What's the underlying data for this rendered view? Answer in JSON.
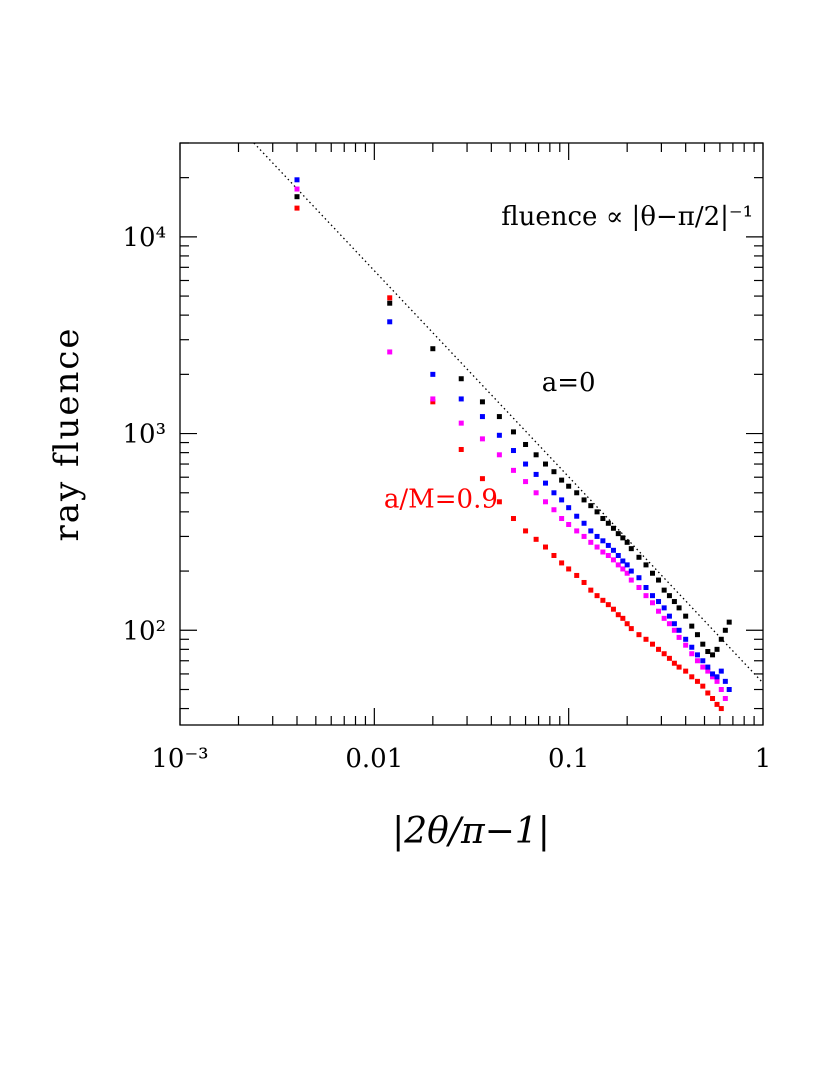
{
  "chart_data": {
    "type": "scatter",
    "title": "",
    "xlabel": "|2θ/π−1|",
    "ylabel": "ray fluence",
    "xscale": "log",
    "yscale": "log",
    "xlim": [
      0.001,
      1
    ],
    "ylim": [
      33,
      30000
    ],
    "x_tick_labels": [
      "10⁻³",
      "0.01",
      "0.1",
      "1"
    ],
    "y_tick_labels": [
      "10²",
      "10³",
      "10⁴"
    ],
    "grid": false,
    "annotations": [
      {
        "text": "fluence ∝ |θ−π/2|⁻¹",
        "x": 0.2,
        "y": 11500,
        "color": "#000000"
      },
      {
        "text": "a=0",
        "x": 0.1,
        "y": 1650,
        "color": "#000000"
      },
      {
        "text": "a/M=0.9",
        "x": 0.022,
        "y": 420,
        "color": "#ff0000"
      }
    ],
    "reference_line": {
      "label": "fluence ∝ |θ−π/2|⁻¹",
      "style": "dotted",
      "x": [
        0.0024,
        1.0
      ],
      "y": [
        30000,
        54
      ]
    },
    "series": [
      {
        "color": "#000000",
        "x": [
          0.004,
          0.012,
          0.02,
          0.028,
          0.036,
          0.044,
          0.052,
          0.06,
          0.068,
          0.076,
          0.084,
          0.092,
          0.1,
          0.11,
          0.12,
          0.13,
          0.14,
          0.15,
          0.16,
          0.17,
          0.18,
          0.19,
          0.2,
          0.21,
          0.23,
          0.25,
          0.27,
          0.29,
          0.31,
          0.33,
          0.35,
          0.37,
          0.4,
          0.43,
          0.46,
          0.49,
          0.52,
          0.55,
          0.58,
          0.61,
          0.64,
          0.67
        ],
        "y": [
          16000,
          4600,
          2700,
          1900,
          1450,
          1220,
          1020,
          880,
          780,
          700,
          640,
          580,
          540,
          500,
          460,
          430,
          400,
          370,
          350,
          330,
          310,
          295,
          280,
          260,
          235,
          215,
          195,
          180,
          160,
          150,
          140,
          130,
          118,
          105,
          95,
          85,
          78,
          75,
          80,
          90,
          100,
          110
        ]
      },
      {
        "color": "#0000ff",
        "x": [
          0.004,
          0.012,
          0.02,
          0.028,
          0.036,
          0.044,
          0.052,
          0.06,
          0.068,
          0.076,
          0.084,
          0.092,
          0.1,
          0.11,
          0.12,
          0.13,
          0.14,
          0.15,
          0.16,
          0.17,
          0.18,
          0.19,
          0.2,
          0.21,
          0.23,
          0.25,
          0.27,
          0.29,
          0.31,
          0.33,
          0.35,
          0.37,
          0.4,
          0.43,
          0.46,
          0.49,
          0.52,
          0.55,
          0.58,
          0.61,
          0.64,
          0.67
        ],
        "y": [
          19500,
          3700,
          2000,
          1500,
          1220,
          980,
          820,
          700,
          620,
          560,
          500,
          460,
          420,
          380,
          350,
          320,
          300,
          285,
          270,
          255,
          240,
          225,
          215,
          200,
          185,
          165,
          150,
          140,
          130,
          118,
          108,
          100,
          90,
          82,
          75,
          70,
          65,
          60,
          58,
          62,
          55,
          50
        ]
      },
      {
        "color": "#ff00ff",
        "x": [
          0.004,
          0.012,
          0.02,
          0.028,
          0.036,
          0.044,
          0.052,
          0.06,
          0.068,
          0.076,
          0.084,
          0.092,
          0.1,
          0.11,
          0.12,
          0.13,
          0.14,
          0.15,
          0.16,
          0.17,
          0.18,
          0.19,
          0.2,
          0.21,
          0.23,
          0.25,
          0.27,
          0.29,
          0.31,
          0.33,
          0.35,
          0.37,
          0.4,
          0.43,
          0.46,
          0.49,
          0.52,
          0.55,
          0.58,
          0.61,
          0.64
        ],
        "y": [
          17500,
          2600,
          1500,
          1130,
          940,
          780,
          650,
          570,
          500,
          450,
          410,
          370,
          345,
          320,
          300,
          280,
          265,
          250,
          240,
          228,
          215,
          205,
          195,
          180,
          165,
          150,
          138,
          125,
          115,
          108,
          100,
          92,
          84,
          76,
          70,
          65,
          62,
          58,
          55,
          50,
          45
        ]
      },
      {
        "color": "#ff0000",
        "x": [
          0.004,
          0.012,
          0.02,
          0.028,
          0.036,
          0.044,
          0.052,
          0.06,
          0.068,
          0.076,
          0.084,
          0.092,
          0.1,
          0.11,
          0.12,
          0.13,
          0.14,
          0.15,
          0.16,
          0.17,
          0.18,
          0.19,
          0.2,
          0.21,
          0.23,
          0.25,
          0.27,
          0.29,
          0.31,
          0.33,
          0.35,
          0.37,
          0.4,
          0.43,
          0.46,
          0.49,
          0.52,
          0.55,
          0.58,
          0.61
        ],
        "y": [
          14000,
          4900,
          1450,
          830,
          590,
          450,
          370,
          320,
          290,
          265,
          240,
          220,
          205,
          190,
          175,
          160,
          150,
          142,
          135,
          128,
          120,
          115,
          108,
          102,
          95,
          90,
          85,
          80,
          76,
          72,
          68,
          65,
          62,
          58,
          55,
          52,
          48,
          45,
          42,
          40
        ]
      }
    ]
  }
}
